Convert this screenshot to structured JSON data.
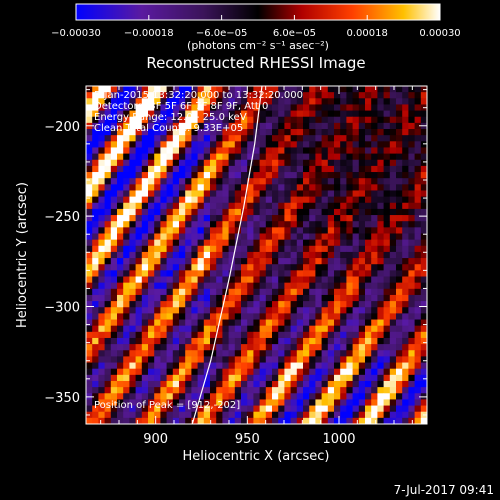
{
  "chart_data": {
    "type": "heatmap",
    "title": "Reconstructed RHESSI Image",
    "xlabel": "Heliocentric X (arcsec)",
    "ylabel": "Heliocentric Y (arcsec)",
    "xlim": [
      862,
      1048
    ],
    "ylim": [
      -365,
      -178
    ],
    "x_ticks": [
      900,
      950,
      1000
    ],
    "x_tick_labels": [
      "900",
      "950",
      "1000"
    ],
    "y_ticks": [
      -200,
      -250,
      -300,
      -350
    ],
    "y_tick_labels": [
      "−200",
      "−250",
      "−300",
      "−350"
    ],
    "colorbar": {
      "range": [
        -0.0003,
        0.0003
      ],
      "tick_labels": [
        "−0.00030",
        "−0.00018",
        "−6.0e−05",
        "6.0e−05",
        "0.00018",
        "0.00030"
      ],
      "unit_label": "(photons cm⁻² s⁻¹ asec⁻²)",
      "colormap": [
        "#0000ff",
        "#5a1aa0",
        "#3b145a",
        "#000000",
        "#b00000",
        "#ff4000",
        "#ffc000",
        "#ffffff"
      ]
    },
    "info_lines": [
      "5-Jan-2015 13:32:20.000 to 13:32:20.000",
      "Detectors: 3F 5F 6F 7F 8F 9F, Att 0",
      "Energy Range: 12.0 - 25.0 keV",
      "Clean    Total Counts: 9.33E+05"
    ],
    "peak_label": "Position of Peak = [912,-202]",
    "limb_line": [
      [
        920,
        -365
      ],
      [
        930,
        -330
      ],
      [
        940,
        -285
      ],
      [
        948,
        -245
      ],
      [
        954,
        -210
      ],
      [
        958,
        -178
      ]
    ],
    "pattern": {
      "description": "diagonal fringe stripes",
      "stripe_direction": "lower-left to upper-right"
    }
  },
  "footer": {
    "date": "7-Jul-2017 09:41"
  }
}
